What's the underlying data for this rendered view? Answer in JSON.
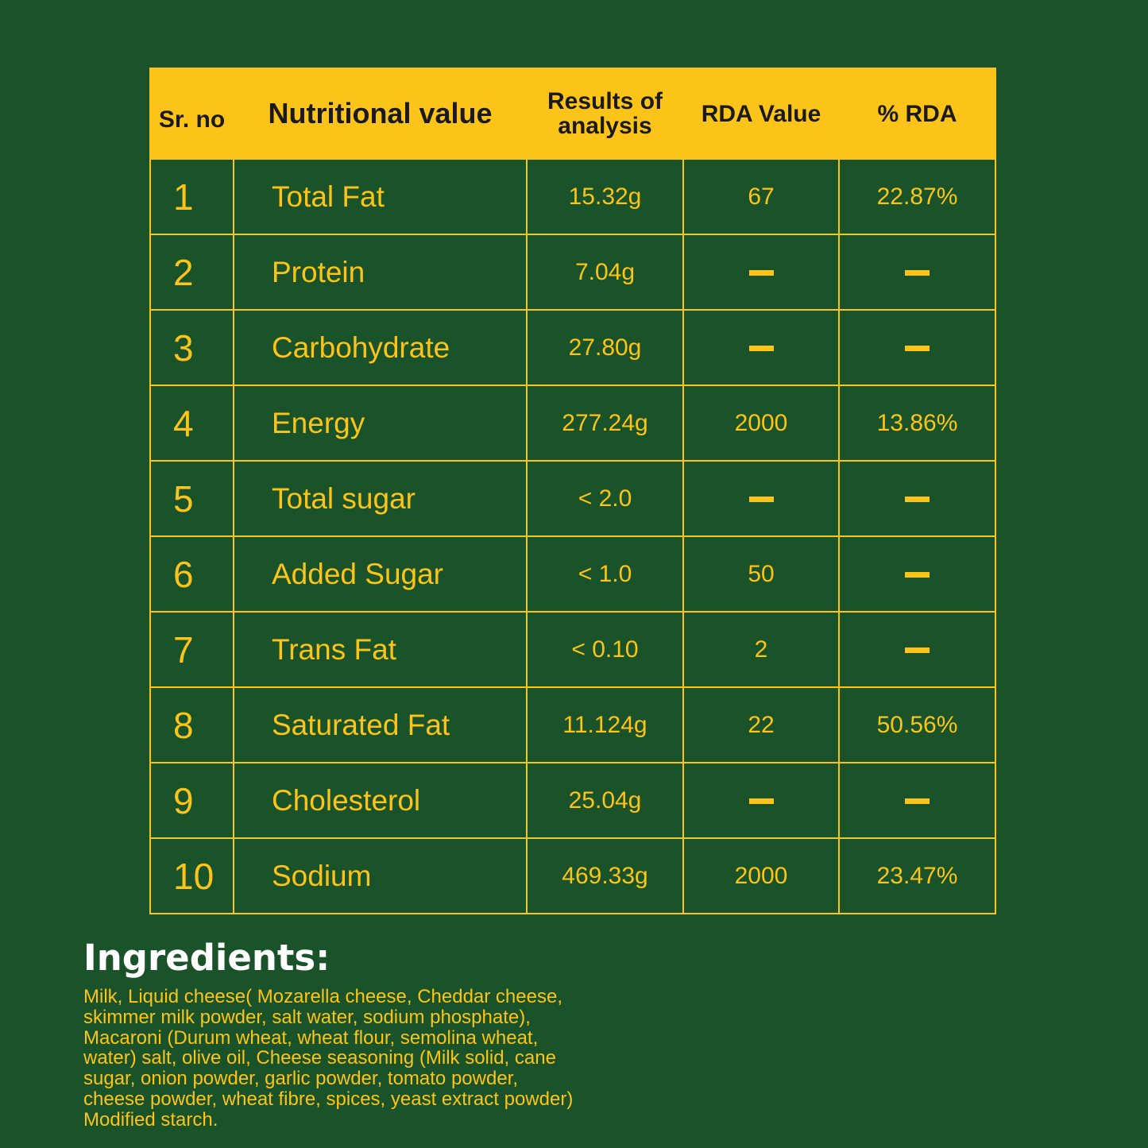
{
  "colors": {
    "background": "#1a522a",
    "accent": "#fcc419",
    "header_text": "#1a1a1a"
  },
  "table": {
    "headers": {
      "sr_no": "Sr. no",
      "nutritional_value": "Nutritional value",
      "results_line1": "Results of",
      "results_line2": "analysis",
      "rda_value": "RDA Value",
      "percent_rda": "% RDA"
    },
    "dash_icon": "dash-icon",
    "rows": [
      {
        "sr": "1",
        "name": "Total Fat",
        "result": "15.32g",
        "rda": "67",
        "pct": "22.87%"
      },
      {
        "sr": "2",
        "name": "Protein",
        "result": "7.04g",
        "rda": null,
        "pct": null
      },
      {
        "sr": "3",
        "name": "Carbohydrate",
        "result": "27.80g",
        "rda": null,
        "pct": null
      },
      {
        "sr": "4",
        "name": "Energy",
        "result": "277.24g",
        "rda": "2000",
        "pct": "13.86%"
      },
      {
        "sr": "5",
        "name": "Total sugar",
        "result": "< 2.0",
        "rda": null,
        "pct": null
      },
      {
        "sr": "6",
        "name": "Added Sugar",
        "result": "< 1.0",
        "rda": "50",
        "pct": null
      },
      {
        "sr": "7",
        "name": "Trans Fat",
        "result": "< 0.10",
        "rda": "2",
        "pct": null
      },
      {
        "sr": "8",
        "name": "Saturated Fat",
        "result": "11.124g",
        "rda": "22",
        "pct": "50.56%"
      },
      {
        "sr": "9",
        "name": "Cholesterol",
        "result": "25.04g",
        "rda": null,
        "pct": null
      },
      {
        "sr": "10",
        "name": "Sodium",
        "result": "469.33g",
        "rda": "2000",
        "pct": "23.47%"
      }
    ]
  },
  "ingredients": {
    "title": "Ingredients:",
    "lines": [
      "Milk, Liquid cheese( Mozarella cheese, Cheddar cheese,",
      "skimmer milk powder, salt water, sodium phosphate),",
      "Macaroni (Durum wheat, wheat flour, semolina wheat,",
      "water) salt, olive oil, Cheese seasoning (Milk solid, cane",
      "sugar, onion powder, garlic powder, tomato powder,",
      "cheese powder, wheat fibre, spices, yeast extract powder)",
      "Modified starch."
    ]
  }
}
